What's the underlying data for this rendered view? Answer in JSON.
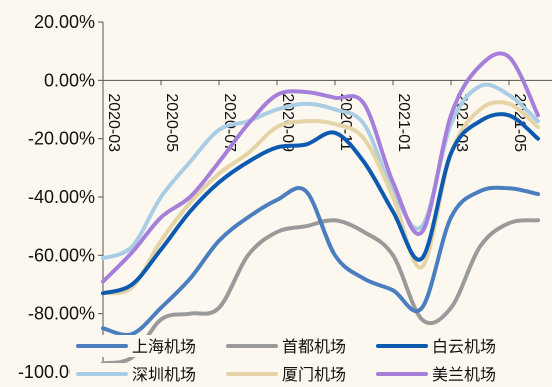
{
  "chart_data": {
    "type": "line",
    "title": "",
    "xlabel": "",
    "ylabel": "",
    "x": [
      "2020-03",
      "2020-04",
      "2020-05",
      "2020-06",
      "2020-07",
      "2020-08",
      "2020-09",
      "2020-10",
      "2020-11",
      "2020-12",
      "2021-01",
      "2021-02",
      "2021-03",
      "2021-04",
      "2021-05",
      "2021-06"
    ],
    "x_ticks": [
      "2020-03",
      "2020-05",
      "2020-07",
      "2020-09",
      "2020-11",
      "2021-01",
      "2021-03",
      "2021-05"
    ],
    "y_ticks": [
      "20.00%",
      "0.00%",
      "-20.00%",
      "-40.00%",
      "-60.00%",
      "-80.00%",
      "-100.00%"
    ],
    "ylim": [
      -100,
      20
    ],
    "grid": false,
    "legend_position": "bottom",
    "series": [
      {
        "name": "上海机场",
        "color": "#4a7ebf",
        "values": [
          -85,
          -87,
          -78,
          -68,
          -55,
          -47,
          -41,
          -38,
          -60,
          -68,
          -72,
          -78,
          -47,
          -38,
          -37,
          -39
        ]
      },
      {
        "name": "首都机场",
        "color": "#9a9a9a",
        "values": [
          -97,
          -95,
          -82,
          -80,
          -78,
          -60,
          -52,
          -50,
          -48,
          -52,
          -60,
          -82,
          -78,
          -57,
          -49,
          -48
        ]
      },
      {
        "name": "白云机场",
        "color": "#0d5bb0",
        "values": [
          -73,
          -70,
          -58,
          -45,
          -35,
          -28,
          -23,
          -22,
          -18,
          -28,
          -45,
          -61,
          -25,
          -14,
          -12,
          -20
        ]
      },
      {
        "name": "深圳机场",
        "color": "#a9cde5",
        "values": [
          -61,
          -57,
          -40,
          -28,
          -17,
          -14,
          -10,
          -8,
          -10,
          -15,
          -38,
          -50,
          -15,
          -2,
          -5,
          -14
        ]
      },
      {
        "name": "厦门机场",
        "color": "#e4d4a6",
        "values": [
          -73,
          -71,
          -55,
          -42,
          -32,
          -25,
          -16,
          -14,
          -15,
          -20,
          -40,
          -64,
          -25,
          -10,
          -8,
          -16
        ]
      },
      {
        "name": "美兰机场",
        "color": "#a57fd9",
        "values": [
          -69,
          -59,
          -47,
          -40,
          -28,
          -15,
          -5,
          -4,
          -6,
          -8,
          -35,
          -52,
          -12,
          5,
          8,
          -12
        ]
      }
    ]
  }
}
